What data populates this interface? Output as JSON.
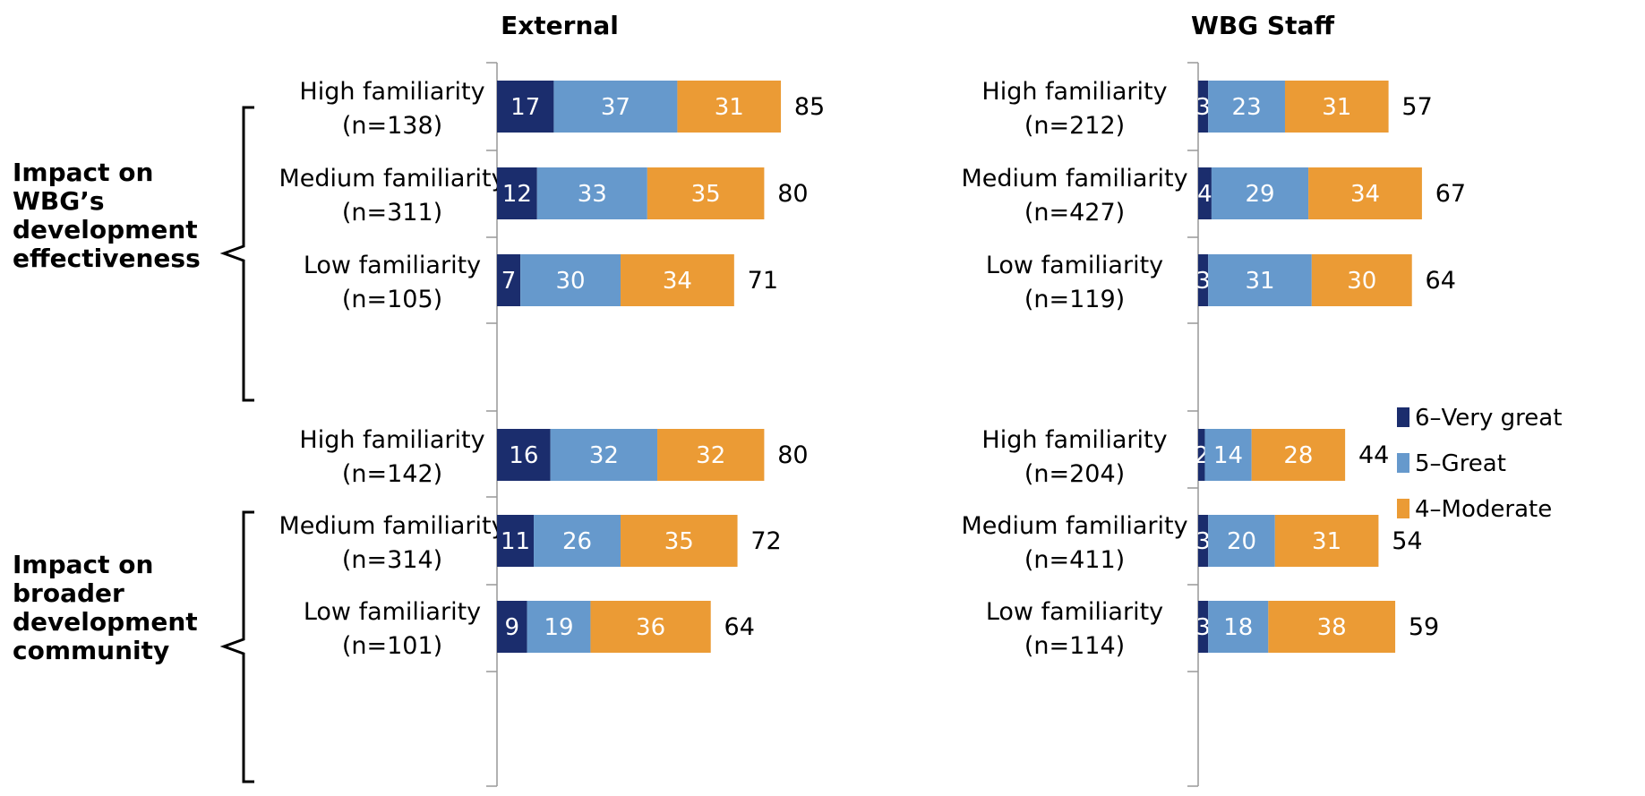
{
  "chart_data": {
    "type": "bar",
    "orientation": "horizontal",
    "stacked": true,
    "xlim": [
      0,
      100
    ],
    "grid": false,
    "legend_position": "right",
    "colors": {
      "6–Very great": "#1b2d6d",
      "5–Great": "#6699cc",
      "4–Moderate": "#eb9b35"
    },
    "legend": [
      "6–Very great",
      "5–Great",
      "4–Moderate"
    ],
    "groups": [
      "Impact on WBG’s development effectiveness",
      "Impact on broader development community"
    ],
    "panels": [
      {
        "title": "External",
        "groups": [
          {
            "categories": [
              {
                "label": "High familiarity",
                "n": "(n=138)",
                "values": [
                  17,
                  37,
                  31
                ],
                "total": 85
              },
              {
                "label": "Medium familiarity",
                "n": "(n=311)",
                "values": [
                  12,
                  33,
                  35
                ],
                "total": 80
              },
              {
                "label": "Low familiarity",
                "n": "(n=105)",
                "values": [
                  7,
                  30,
                  34
                ],
                "total": 71
              }
            ]
          },
          {
            "categories": [
              {
                "label": "High familiarity",
                "n": "(n=142)",
                "values": [
                  16,
                  32,
                  32
                ],
                "total": 80
              },
              {
                "label": "Medium familiarity",
                "n": "(n=314)",
                "values": [
                  11,
                  26,
                  35
                ],
                "total": 72
              },
              {
                "label": "Low familiarity",
                "n": "(n=101)",
                "values": [
                  9,
                  19,
                  36
                ],
                "total": 64
              }
            ]
          }
        ]
      },
      {
        "title": "WBG Staff",
        "groups": [
          {
            "categories": [
              {
                "label": "High familiarity",
                "n": "(n=212)",
                "values": [
                  3,
                  23,
                  31
                ],
                "total": 57
              },
              {
                "label": "Medium familiarity",
                "n": "(n=427)",
                "values": [
                  4,
                  29,
                  34
                ],
                "total": 67
              },
              {
                "label": "Low familiarity",
                "n": "(n=119)",
                "values": [
                  3,
                  31,
                  30
                ],
                "total": 64
              }
            ]
          },
          {
            "categories": [
              {
                "label": "High familiarity",
                "n": "(n=204)",
                "values": [
                  2,
                  14,
                  28
                ],
                "total": 44
              },
              {
                "label": "Medium familiarity",
                "n": "(n=411)",
                "values": [
                  3,
                  20,
                  31
                ],
                "total": 54
              },
              {
                "label": "Low familiarity",
                "n": "(n=114)",
                "values": [
                  3,
                  18,
                  38
                ],
                "total": 59
              }
            ]
          }
        ]
      }
    ]
  }
}
